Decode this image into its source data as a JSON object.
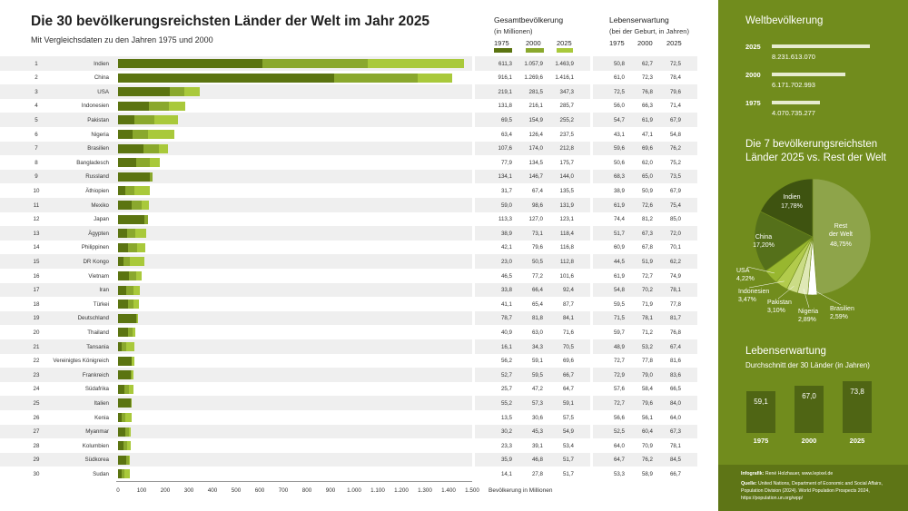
{
  "title": "Die 30 bevölkerungsreichsten Länder der Welt im Jahr 2025",
  "subtitle": "Mit Vergleichsdaten zu den Jahren 1975 und 2000",
  "colors": {
    "y1975": "#5b7411",
    "y2000": "#8aa82d",
    "y2025": "#a9c93b",
    "panel": "#718c1d"
  },
  "headers": {
    "pop_title": "Gesamtbevölkerung",
    "pop_sub": "(in Millionen)",
    "le_title": "Lebenserwartung",
    "le_sub": "(bei der Geburt, in Jahren)",
    "y1975": "1975",
    "y2000": "2000",
    "y2025": "2025"
  },
  "chart_data": {
    "type": "bar",
    "orientation": "horizontal",
    "title": "Die 30 bevölkerungsreichsten Länder der Welt im Jahr 2025",
    "xlabel": "Bevölkerung in Millionen",
    "xlim": [
      0,
      1500
    ],
    "xticks": [
      "0",
      "100",
      "200",
      "300",
      "400",
      "500",
      "600",
      "700",
      "800",
      "900",
      "1.000",
      "1.100",
      "1.200",
      "1.300",
      "1.400",
      "1.500"
    ],
    "series": [
      "1975",
      "2000",
      "2025"
    ],
    "rows": [
      {
        "rank": "1",
        "country": "Indien",
        "p1975": 611.3,
        "p2000": 1057.9,
        "p2025": 1463.9,
        "t1975": "611,3",
        "t2000": "1.057,9",
        "t2025": "1.463,9",
        "le1975": "50,8",
        "le2000": "62,7",
        "le2025": "72,5"
      },
      {
        "rank": "2",
        "country": "China",
        "p1975": 916.1,
        "p2000": 1269.6,
        "p2025": 1416.1,
        "t1975": "916,1",
        "t2000": "1.269,6",
        "t2025": "1.416,1",
        "le1975": "61,0",
        "le2000": "72,3",
        "le2025": "78,4"
      },
      {
        "rank": "3",
        "country": "USA",
        "p1975": 219.1,
        "p2000": 281.5,
        "p2025": 347.3,
        "t1975": "219,1",
        "t2000": "281,5",
        "t2025": "347,3",
        "le1975": "72,5",
        "le2000": "76,8",
        "le2025": "79,6"
      },
      {
        "rank": "4",
        "country": "Indonesien",
        "p1975": 131.8,
        "p2000": 216.1,
        "p2025": 285.7,
        "t1975": "131,8",
        "t2000": "216,1",
        "t2025": "285,7",
        "le1975": "56,0",
        "le2000": "66,3",
        "le2025": "71,4"
      },
      {
        "rank": "5",
        "country": "Pakistan",
        "p1975": 69.5,
        "p2000": 154.9,
        "p2025": 255.2,
        "t1975": "69,5",
        "t2000": "154,9",
        "t2025": "255,2",
        "le1975": "54,7",
        "le2000": "61,9",
        "le2025": "67,9"
      },
      {
        "rank": "6",
        "country": "Nigeria",
        "p1975": 63.4,
        "p2000": 126.4,
        "p2025": 237.5,
        "t1975": "63,4",
        "t2000": "126,4",
        "t2025": "237,5",
        "le1975": "43,1",
        "le2000": "47,1",
        "le2025": "54,8"
      },
      {
        "rank": "7",
        "country": "Brasilien",
        "p1975": 107.6,
        "p2000": 174.0,
        "p2025": 212.8,
        "t1975": "107,6",
        "t2000": "174,0",
        "t2025": "212,8",
        "le1975": "59,6",
        "le2000": "69,6",
        "le2025": "76,2"
      },
      {
        "rank": "8",
        "country": "Bangladesch",
        "p1975": 77.9,
        "p2000": 134.5,
        "p2025": 175.7,
        "t1975": "77,9",
        "t2000": "134,5",
        "t2025": "175,7",
        "le1975": "50,6",
        "le2000": "62,0",
        "le2025": "75,2"
      },
      {
        "rank": "9",
        "country": "Russland",
        "p1975": 134.1,
        "p2000": 146.7,
        "p2025": 144.0,
        "t1975": "134,1",
        "t2000": "146,7",
        "t2025": "144,0",
        "le1975": "68,3",
        "le2000": "65,0",
        "le2025": "73,5"
      },
      {
        "rank": "10",
        "country": "Äthiopien",
        "p1975": 31.7,
        "p2000": 67.4,
        "p2025": 135.5,
        "t1975": "31,7",
        "t2000": "67,4",
        "t2025": "135,5",
        "le1975": "38,9",
        "le2000": "50,9",
        "le2025": "67,9"
      },
      {
        "rank": "11",
        "country": "Mexiko",
        "p1975": 59.0,
        "p2000": 98.6,
        "p2025": 131.9,
        "t1975": "59,0",
        "t2000": "98,6",
        "t2025": "131,9",
        "le1975": "61,9",
        "le2000": "72,6",
        "le2025": "75,4"
      },
      {
        "rank": "12",
        "country": "Japan",
        "p1975": 113.3,
        "p2000": 127.0,
        "p2025": 123.1,
        "t1975": "113,3",
        "t2000": "127,0",
        "t2025": "123,1",
        "le1975": "74,4",
        "le2000": "81,2",
        "le2025": "85,0"
      },
      {
        "rank": "13",
        "country": "Ägypten",
        "p1975": 38.9,
        "p2000": 73.1,
        "p2025": 118.4,
        "t1975": "38,9",
        "t2000": "73,1",
        "t2025": "118,4",
        "le1975": "51,7",
        "le2000": "67,3",
        "le2025": "72,0"
      },
      {
        "rank": "14",
        "country": "Philippinen",
        "p1975": 42.1,
        "p2000": 79.6,
        "p2025": 116.8,
        "t1975": "42,1",
        "t2000": "79,6",
        "t2025": "116,8",
        "le1975": "60,9",
        "le2000": "67,8",
        "le2025": "70,1"
      },
      {
        "rank": "15",
        "country": "DR Kongo",
        "p1975": 23.0,
        "p2000": 50.5,
        "p2025": 112.8,
        "t1975": "23,0",
        "t2000": "50,5",
        "t2025": "112,8",
        "le1975": "44,5",
        "le2000": "51,9",
        "le2025": "62,2"
      },
      {
        "rank": "16",
        "country": "Vietnam",
        "p1975": 46.5,
        "p2000": 77.2,
        "p2025": 101.6,
        "t1975": "46,5",
        "t2000": "77,2",
        "t2025": "101,6",
        "le1975": "61,9",
        "le2000": "72,7",
        "le2025": "74,9"
      },
      {
        "rank": "17",
        "country": "Iran",
        "p1975": 33.8,
        "p2000": 66.4,
        "p2025": 92.4,
        "t1975": "33,8",
        "t2000": "66,4",
        "t2025": "92,4",
        "le1975": "54,8",
        "le2000": "70,2",
        "le2025": "78,1"
      },
      {
        "rank": "18",
        "country": "Türkei",
        "p1975": 41.1,
        "p2000": 65.4,
        "p2025": 87.7,
        "t1975": "41,1",
        "t2000": "65,4",
        "t2025": "87,7",
        "le1975": "59,5",
        "le2000": "71,9",
        "le2025": "77,8"
      },
      {
        "rank": "19",
        "country": "Deutschland",
        "p1975": 78.7,
        "p2000": 81.8,
        "p2025": 84.1,
        "t1975": "78,7",
        "t2000": "81,8",
        "t2025": "84,1",
        "le1975": "71,5",
        "le2000": "78,1",
        "le2025": "81,7"
      },
      {
        "rank": "20",
        "country": "Thailand",
        "p1975": 40.9,
        "p2000": 63.0,
        "p2025": 71.6,
        "t1975": "40,9",
        "t2000": "63,0",
        "t2025": "71,6",
        "le1975": "59,7",
        "le2000": "71,2",
        "le2025": "76,8"
      },
      {
        "rank": "21",
        "country": "Tansania",
        "p1975": 16.1,
        "p2000": 34.3,
        "p2025": 70.5,
        "t1975": "16,1",
        "t2000": "34,3",
        "t2025": "70,5",
        "le1975": "48,9",
        "le2000": "53,2",
        "le2025": "67,4"
      },
      {
        "rank": "22",
        "country": "Vereinigtes Königreich",
        "p1975": 56.2,
        "p2000": 59.1,
        "p2025": 69.6,
        "t1975": "56,2",
        "t2000": "59,1",
        "t2025": "69,6",
        "le1975": "72,7",
        "le2000": "77,8",
        "le2025": "81,6"
      },
      {
        "rank": "23",
        "country": "Frankreich",
        "p1975": 52.7,
        "p2000": 59.5,
        "p2025": 66.7,
        "t1975": "52,7",
        "t2000": "59,5",
        "t2025": "66,7",
        "le1975": "72,9",
        "le2000": "79,0",
        "le2025": "83,6"
      },
      {
        "rank": "24",
        "country": "Südafrika",
        "p1975": 25.7,
        "p2000": 47.2,
        "p2025": 64.7,
        "t1975": "25,7",
        "t2000": "47,2",
        "t2025": "64,7",
        "le1975": "57,6",
        "le2000": "58,4",
        "le2025": "66,5"
      },
      {
        "rank": "25",
        "country": "Italien",
        "p1975": 55.2,
        "p2000": 57.3,
        "p2025": 59.1,
        "t1975": "55,2",
        "t2000": "57,3",
        "t2025": "59,1",
        "le1975": "72,7",
        "le2000": "79,6",
        "le2025": "84,0"
      },
      {
        "rank": "26",
        "country": "Kenia",
        "p1975": 13.5,
        "p2000": 30.6,
        "p2025": 57.5,
        "t1975": "13,5",
        "t2000": "30,6",
        "t2025": "57,5",
        "le1975": "56,6",
        "le2000": "56,1",
        "le2025": "64,0"
      },
      {
        "rank": "27",
        "country": "Myanmar",
        "p1975": 30.2,
        "p2000": 45.3,
        "p2025": 54.9,
        "t1975": "30,2",
        "t2000": "45,3",
        "t2025": "54,9",
        "le1975": "52,5",
        "le2000": "60,4",
        "le2025": "67,3"
      },
      {
        "rank": "28",
        "country": "Kolumbien",
        "p1975": 23.3,
        "p2000": 39.1,
        "p2025": 53.4,
        "t1975": "23,3",
        "t2000": "39,1",
        "t2025": "53,4",
        "le1975": "64,0",
        "le2000": "70,9",
        "le2025": "78,1"
      },
      {
        "rank": "29",
        "country": "Südkorea",
        "p1975": 35.9,
        "p2000": 46.8,
        "p2025": 51.7,
        "t1975": "35,9",
        "t2000": "46,8",
        "t2025": "51,7",
        "le1975": "64,7",
        "le2000": "76,2",
        "le2025": "84,5"
      },
      {
        "rank": "30",
        "country": "Sudan",
        "p1975": 14.1,
        "p2000": 27.8,
        "p2025": 51.7,
        "t1975": "14,1",
        "t2000": "27,8",
        "t2025": "51,7",
        "le1975": "53,3",
        "le2000": "58,9",
        "le2025": "66,7"
      }
    ]
  },
  "world": {
    "title": "Weltbevölkerung",
    "items": [
      {
        "year": "2025",
        "value": 8231613070,
        "label": "8.231.613.070"
      },
      {
        "year": "2000",
        "value": 6171702993,
        "label": "6.171.702.993"
      },
      {
        "year": "1975",
        "value": 4070735277,
        "label": "4.070.735.277"
      }
    ]
  },
  "pie": {
    "title_line1": "Die 7 bevölkerungsreichsten",
    "title_line2": "Länder 2025 vs. Rest der Welt",
    "slices": [
      {
        "name": "Rest der Welt",
        "name1": "Rest",
        "name2": "der Welt",
        "pct": 48.75,
        "label": "48,75%",
        "color": "#8ea44a"
      },
      {
        "name": "Brasilien",
        "pct": 2.59,
        "label": "2,59%",
        "color": "#ffffff"
      },
      {
        "name": "Nigeria",
        "pct": 2.89,
        "label": "2,89%",
        "color": "#dfe8b6"
      },
      {
        "name": "Pakistan",
        "pct": 3.1,
        "label": "3,10%",
        "color": "#cbdc86"
      },
      {
        "name": "Indonesien",
        "pct": 3.47,
        "label": "3,47%",
        "color": "#b2cb4c"
      },
      {
        "name": "USA",
        "pct": 4.22,
        "label": "4,22%",
        "color": "#98b72f"
      },
      {
        "name": "China",
        "pct": 17.2,
        "label": "17,20%",
        "color": "#55701a"
      },
      {
        "name": "Indien",
        "pct": 17.78,
        "label": "17,78%",
        "color": "#3e5310"
      }
    ]
  },
  "life": {
    "title": "Lebenserwartung",
    "subtitle": "Durchschnitt der 30 Länder (in Jahren)",
    "bars": [
      {
        "year": "1975",
        "value": 59.1,
        "label": "59,1"
      },
      {
        "year": "2000",
        "value": 67.0,
        "label": "67,0"
      },
      {
        "year": "2025",
        "value": 73.8,
        "label": "73,8"
      }
    ]
  },
  "source": {
    "infografik_label": "Infografik:",
    "infografik_text": "René Holzhauer, www.lepixel.de",
    "quelle_label": "Quelle:",
    "quelle_line1": "United Nations, Department of Economic and Social Affairs,",
    "quelle_line2": "Population Division (2024). World Population Prospects 2024,",
    "quelle_line3": "https://population.un.org/wpp/"
  }
}
